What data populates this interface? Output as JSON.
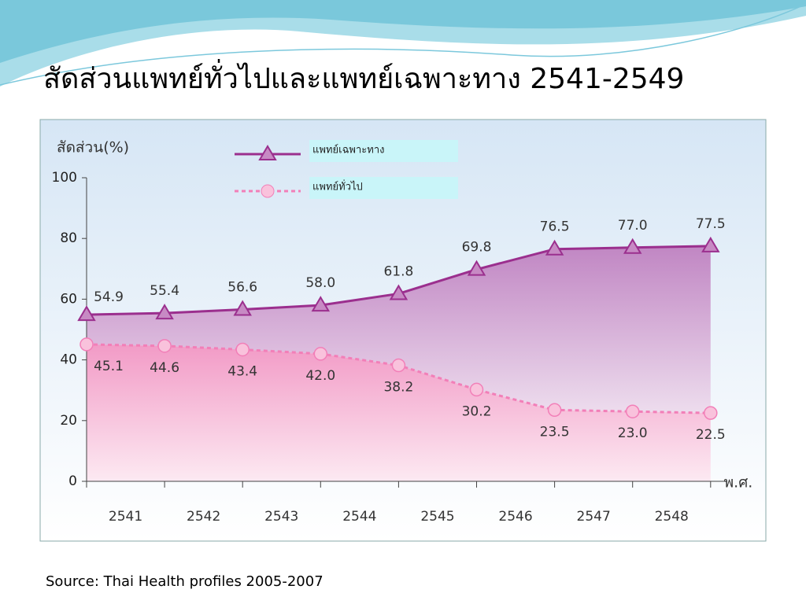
{
  "title": "สัดส่วนแพทย์ทั่วไปและแพทย์เฉพาะทาง 2541-2549",
  "chart_data": {
    "type": "line",
    "y_label": "สัดส่วน(%)",
    "x_label": "พ.ศ.",
    "categories": [
      "2541",
      "2542",
      "2543",
      "2544",
      "2545",
      "2546",
      "2547",
      "2548",
      null
    ],
    "series": [
      {
        "name": "แพทย์เฉพาะทาง",
        "color": "#9b2f8e",
        "values": [
          54.9,
          55.4,
          56.6,
          58.0,
          61.8,
          69.8,
          76.5,
          77.0,
          77.5
        ],
        "value_labels": [
          "54.9",
          "55.4",
          "56.6",
          "58.0",
          "61.8",
          "69.8",
          "76.5",
          "77.0",
          "77.5"
        ]
      },
      {
        "name": "แพทย์ทั่วไป",
        "color": "#f27fb8",
        "values": [
          45.1,
          44.6,
          43.4,
          42.0,
          38.2,
          30.2,
          23.5,
          23.0,
          22.5
        ],
        "value_labels": [
          "45.1",
          "44.6",
          "43.4",
          "42.0",
          "38.2",
          "30.2",
          "23.5",
          "23.0",
          "22.5"
        ]
      }
    ],
    "ylim": [
      0,
      100
    ],
    "yticks": [
      0,
      20,
      40,
      60,
      80,
      100
    ]
  },
  "source": "Source: Thai Health profiles 2005-2007"
}
